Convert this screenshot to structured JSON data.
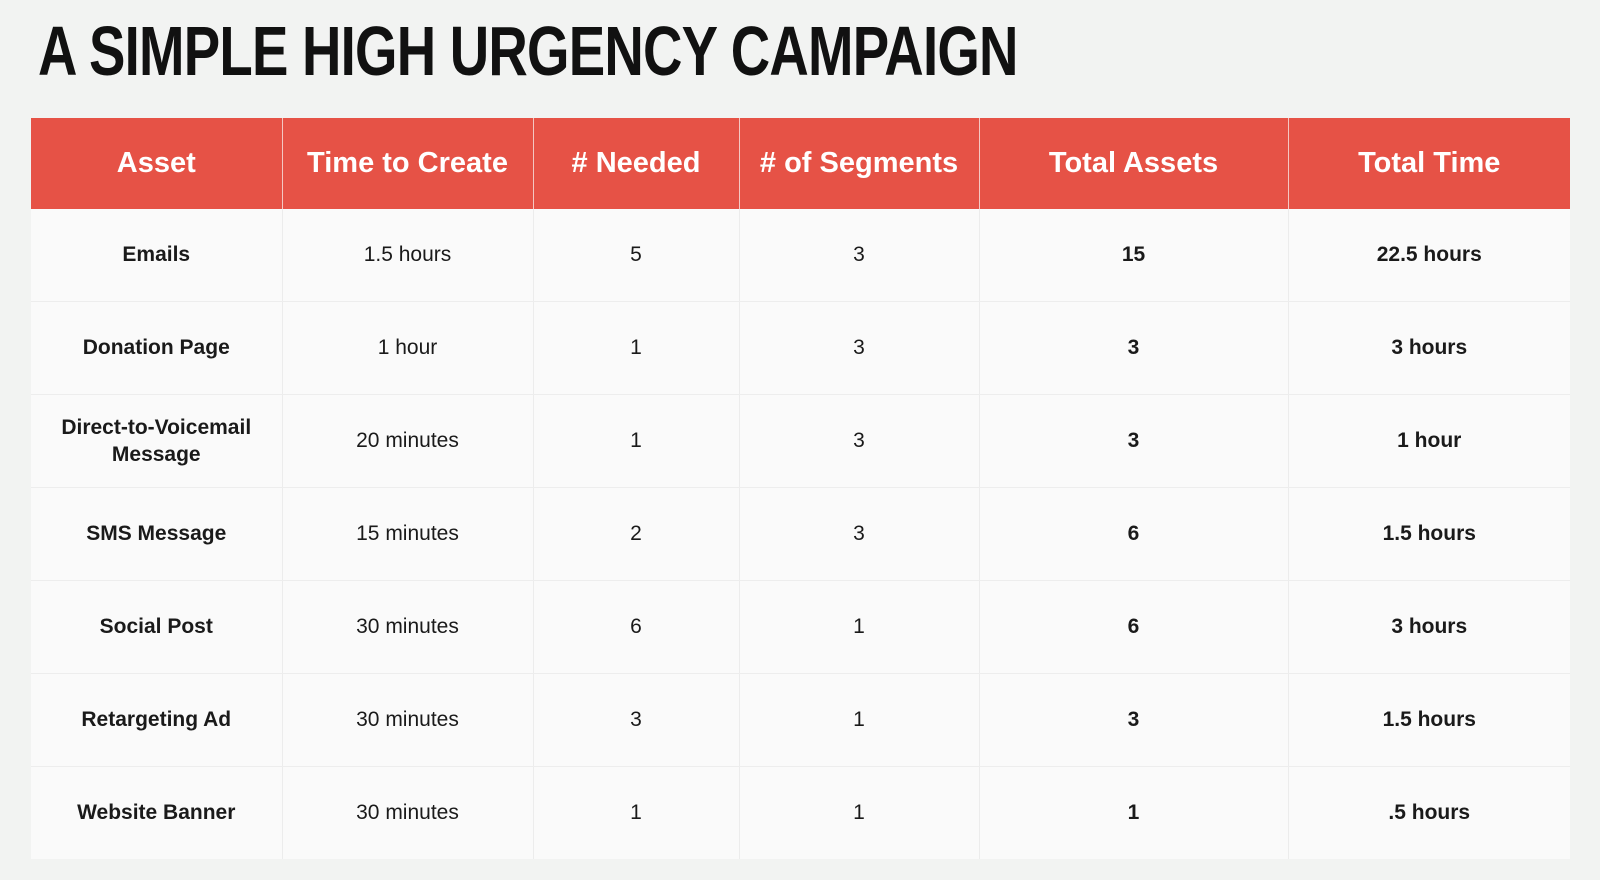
{
  "title": "A SIMPLE HIGH URGENCY CAMPAIGN",
  "table": {
    "headers": [
      "Asset",
      "Time to Create",
      "# Needed",
      "# of Segments",
      "Total Assets",
      "Total Time"
    ],
    "rows": [
      [
        "Emails",
        "1.5 hours",
        "5",
        "3",
        "15",
        "22.5 hours"
      ],
      [
        "Donation Page",
        "1 hour",
        "1",
        "3",
        "3",
        "3 hours"
      ],
      [
        "Direct-to-Voicemail Message",
        "20 minutes",
        "1",
        "3",
        "3",
        "1 hour"
      ],
      [
        "SMS Message",
        "15 minutes",
        "2",
        "3",
        "6",
        "1.5 hours"
      ],
      [
        "Social Post",
        "30 minutes",
        "6",
        "1",
        "6",
        "3 hours"
      ],
      [
        "Retargeting Ad",
        "30 minutes",
        "3",
        "1",
        "3",
        "1.5 hours"
      ],
      [
        "Website Banner",
        "30 minutes",
        "1",
        "1",
        "1",
        ".5 hours"
      ]
    ]
  },
  "colors": {
    "header_background": "#e65246",
    "header_text": "#ffffff",
    "page_background": "#f2f3f2",
    "cell_background": "#fafafa"
  }
}
